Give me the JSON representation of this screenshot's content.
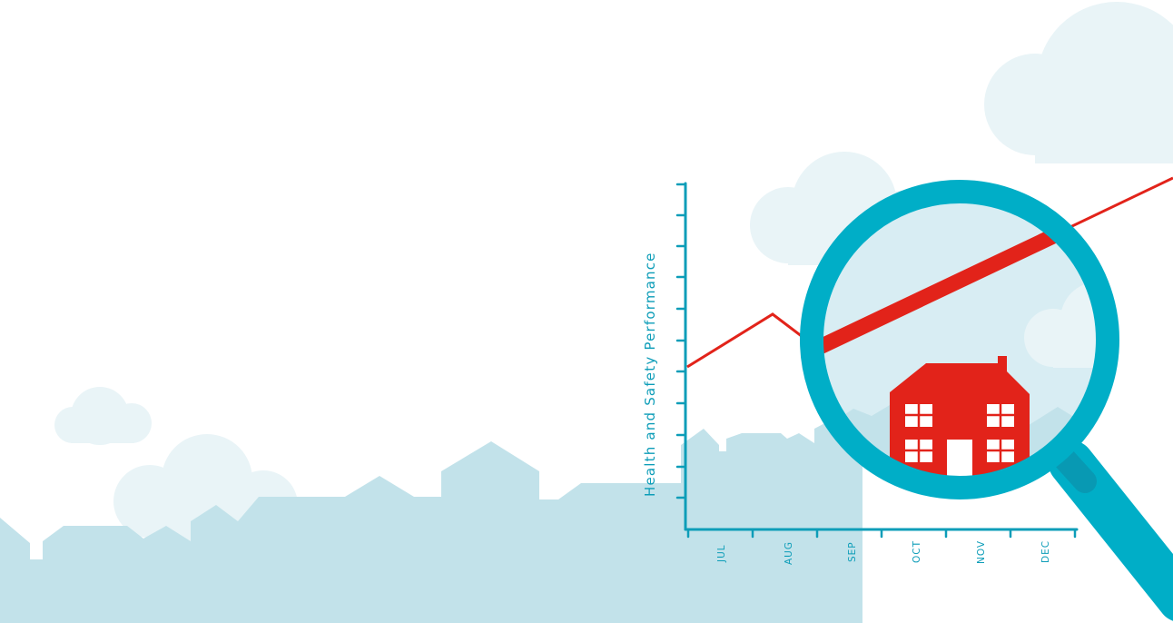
{
  "illustration": {
    "y_axis_label": "Health and Safety Performance",
    "x_axis_ticks": [
      "JUL",
      "AUG",
      "SEP",
      "OCT",
      "NOV",
      "DEC"
    ],
    "icons": [
      "cloud-icon",
      "house-icon",
      "magnifying-glass-icon",
      "skyline-silhouette"
    ],
    "colors": {
      "axis": "#0d9db8",
      "trend_line": "#e2231a",
      "house": "#e2231a",
      "magnifier_ring": "#00aec7",
      "skyline": "#c2e2ea",
      "clouds": "#e9f4f7",
      "lens_tint": "#d8edf3"
    }
  }
}
